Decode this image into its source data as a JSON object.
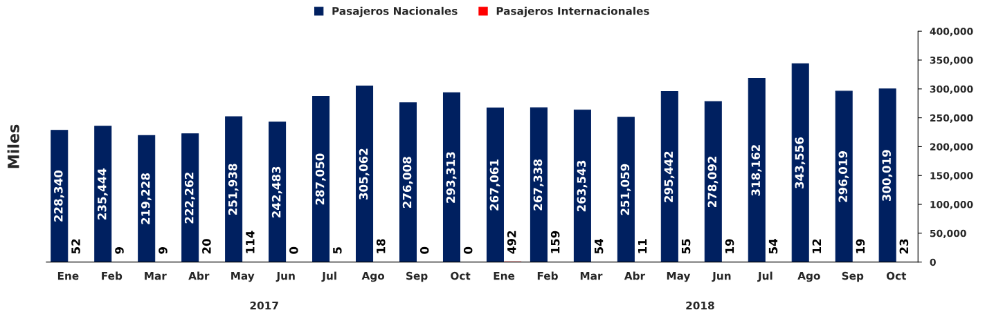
{
  "chart_data": {
    "type": "bar",
    "ylabel": "Miles",
    "categories": [
      "Ene",
      "Feb",
      "Mar",
      "Abr",
      "May",
      "Jun",
      "Jul",
      "Ago",
      "Sep",
      "Oct",
      "Ene",
      "Feb",
      "Mar",
      "Abr",
      "May",
      "Jun",
      "Jul",
      "Ago",
      "Sep",
      "Oct"
    ],
    "series": [
      {
        "name": "Pasajeros Nacionales",
        "color": "#002060",
        "values": [
          228340,
          235444,
          219228,
          222262,
          251938,
          242483,
          287050,
          305062,
          276008,
          293313,
          267061,
          267338,
          263543,
          251059,
          295442,
          278092,
          318162,
          343556,
          296019,
          300019
        ],
        "value_labels": [
          "228,340",
          "235,444",
          "219,228",
          "222,262",
          "251,938",
          "242,483",
          "287,050",
          "305,062",
          "276,008",
          "293,313",
          "267,061",
          "267,338",
          "263,543",
          "251,059",
          "295,442",
          "278,092",
          "318,162",
          "343,556",
          "296,019",
          "300,019"
        ]
      },
      {
        "name": "Pasajeros Internacionales",
        "color": "#ff0000",
        "values": [
          52,
          9,
          9,
          20,
          114,
          0,
          5,
          18,
          0,
          0,
          492,
          159,
          54,
          11,
          55,
          19,
          54,
          12,
          19,
          23
        ],
        "value_labels": [
          "52",
          "9",
          "9",
          "20",
          "114",
          "0",
          "5",
          "18",
          "0",
          "0",
          "492",
          "159",
          "54",
          "11",
          "55",
          "19",
          "54",
          "12",
          "19",
          "23"
        ]
      }
    ],
    "annotations": [
      "2017",
      "2018"
    ],
    "ylim": [
      0,
      400000
    ],
    "yticks": [
      {
        "value": 0,
        "label": "0"
      },
      {
        "value": 50000,
        "label": "50,000"
      },
      {
        "value": 100000,
        "label": "100,000"
      },
      {
        "value": 150000,
        "label": "150,000"
      },
      {
        "value": 200000,
        "label": "200,000"
      },
      {
        "value": 250000,
        "label": "250,000"
      },
      {
        "value": 300000,
        "label": "300,000"
      },
      {
        "value": 350000,
        "label": "350,000"
      },
      {
        "value": 400000,
        "label": "400,000"
      }
    ],
    "grid": false,
    "legend": "top"
  }
}
